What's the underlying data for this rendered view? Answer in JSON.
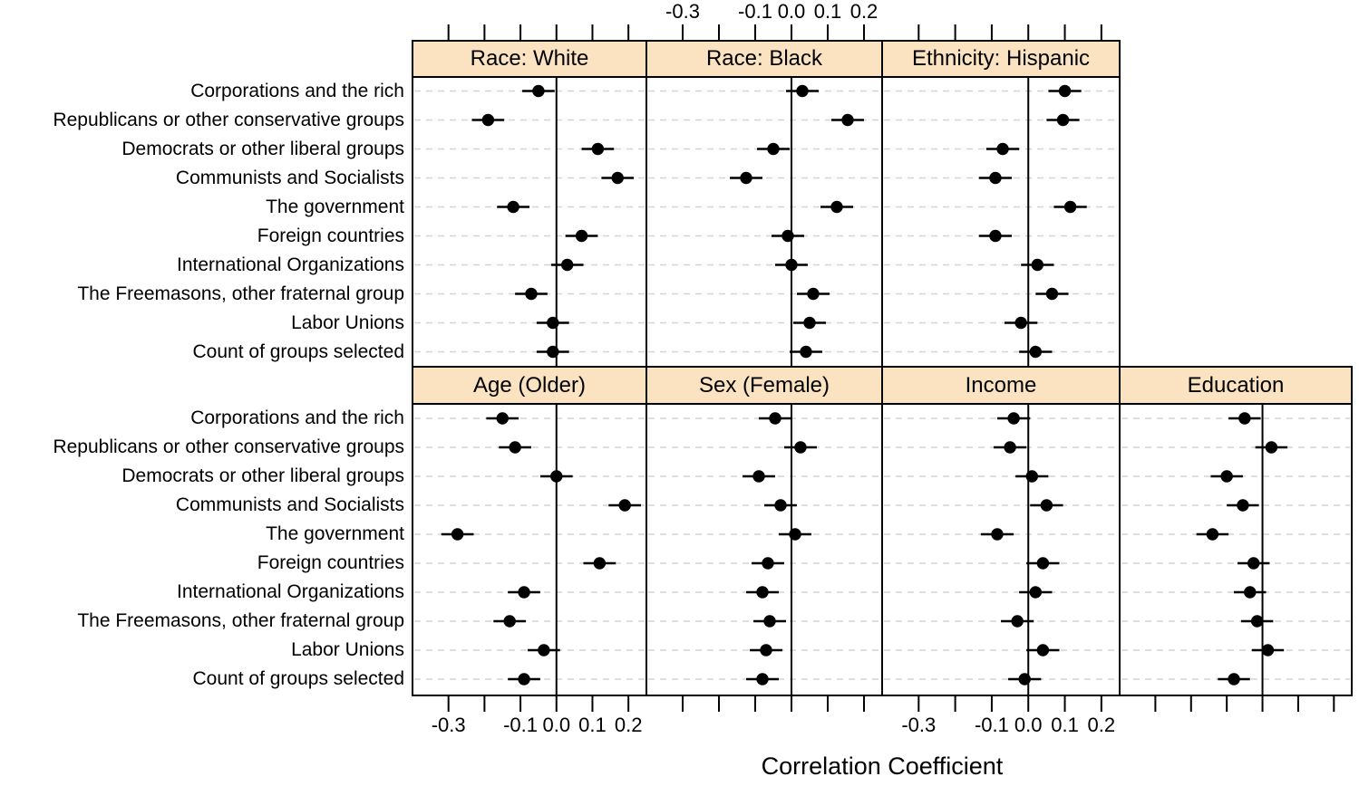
{
  "chart_data": {
    "type": "scatter",
    "subtype": "trellis-dotplot-with-confidence-intervals",
    "xlabel": "Correlation Coefficient",
    "ylabel": "",
    "xlim": [
      -0.4,
      0.25
    ],
    "x_ticks": [
      -0.3,
      -0.2,
      -0.1,
      0,
      0.1,
      0.2
    ],
    "x_tick_labels": [
      "-0.3",
      "",
      "-0.1",
      "0.0",
      "0.1",
      "0.2"
    ],
    "grid": "horizontal-dashed",
    "legend": "none",
    "ci_half_width": 0.045,
    "categories": [
      "Corporations and the rich",
      "Republicans or other conservative groups",
      "Democrats or other liberal groups",
      "Communists and Socialists",
      "The government",
      "Foreign countries",
      "International Organizations",
      "The Freemasons, other fraternal group",
      "Labor Unions",
      "Count of groups selected"
    ],
    "panels": [
      {
        "title": "Race: White",
        "row": 0,
        "col": 0,
        "values": [
          -0.05,
          -0.19,
          0.115,
          0.17,
          -0.12,
          0.07,
          0.03,
          -0.07,
          -0.01,
          -0.01
        ]
      },
      {
        "title": "Race: Black",
        "row": 0,
        "col": 1,
        "values": [
          0.03,
          0.155,
          -0.05,
          -0.125,
          0.125,
          -0.01,
          0.0,
          0.06,
          0.05,
          0.04
        ]
      },
      {
        "title": "Ethnicity: Hispanic",
        "row": 0,
        "col": 2,
        "values": [
          0.1,
          0.095,
          -0.07,
          -0.09,
          0.115,
          -0.09,
          0.025,
          0.065,
          -0.02,
          0.02
        ]
      },
      {
        "title": "Age (Older)",
        "row": 1,
        "col": 0,
        "values": [
          -0.15,
          -0.115,
          0.0,
          0.19,
          -0.275,
          0.12,
          -0.09,
          -0.13,
          -0.035,
          -0.09
        ]
      },
      {
        "title": "Sex (Female)",
        "row": 1,
        "col": 1,
        "values": [
          -0.045,
          0.025,
          -0.09,
          -0.03,
          0.01,
          -0.065,
          -0.08,
          -0.06,
          -0.07,
          -0.08
        ]
      },
      {
        "title": "Income",
        "row": 1,
        "col": 2,
        "values": [
          -0.04,
          -0.05,
          0.01,
          0.05,
          -0.085,
          0.04,
          0.02,
          -0.03,
          0.04,
          -0.01
        ]
      },
      {
        "title": "Education",
        "row": 1,
        "col": 3,
        "values": [
          -0.05,
          0.025,
          -0.1,
          -0.055,
          -0.14,
          -0.025,
          -0.035,
          -0.015,
          0.015,
          -0.08
        ]
      }
    ],
    "colors": {
      "point": "#000000",
      "ci_line": "#000000",
      "strip_fill": "#FBE3C2",
      "gridline": "#D4D4D4",
      "frame": "#000000",
      "zero_line": "#000000",
      "background": "#FFFFFF"
    }
  }
}
